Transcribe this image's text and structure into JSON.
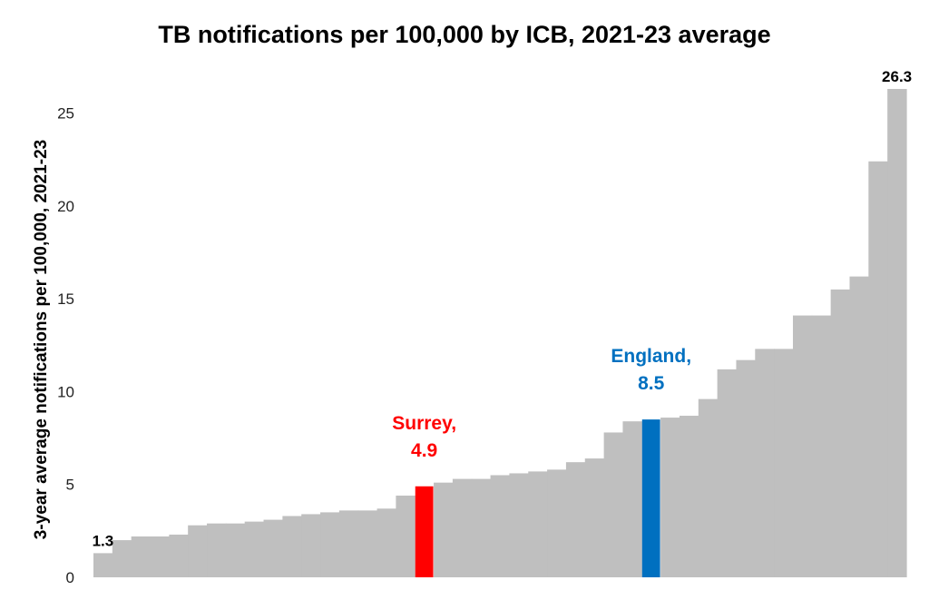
{
  "chart_data": {
    "type": "bar",
    "title": "TB notifications per 100,000 by ICB, 2021-23 average",
    "xlabel": "",
    "ylabel": "3-year average notifications per 100,000, 2021-23",
    "ylim": [
      0,
      26.3
    ],
    "yticks": [
      "0",
      "5",
      "10",
      "15",
      "20",
      "25"
    ],
    "grid": false,
    "legend": "none",
    "values": [
      1.3,
      2.0,
      2.2,
      2.2,
      2.3,
      2.8,
      2.9,
      2.9,
      3.0,
      3.1,
      3.3,
      3.4,
      3.5,
      3.6,
      3.6,
      3.7,
      4.4,
      4.9,
      5.1,
      5.3,
      5.3,
      5.5,
      5.6,
      5.7,
      5.8,
      6.2,
      6.4,
      7.8,
      8.4,
      8.5,
      8.6,
      8.7,
      9.6,
      11.2,
      11.7,
      12.3,
      12.3,
      14.1,
      14.1,
      15.5,
      16.2,
      22.4,
      26.3
    ],
    "data_labels": [
      {
        "index": 0,
        "text": "1.3"
      },
      {
        "index": 42,
        "text": "26.3"
      }
    ],
    "highlights": [
      {
        "index": 17,
        "label_line1": "Surrey,",
        "label_line2": "4.9",
        "color": "#ff0000"
      },
      {
        "index": 29,
        "label_line1": "England,",
        "label_line2": "8.5",
        "color": "#0070c0"
      }
    ],
    "bar_color": "#bfbfbf"
  }
}
